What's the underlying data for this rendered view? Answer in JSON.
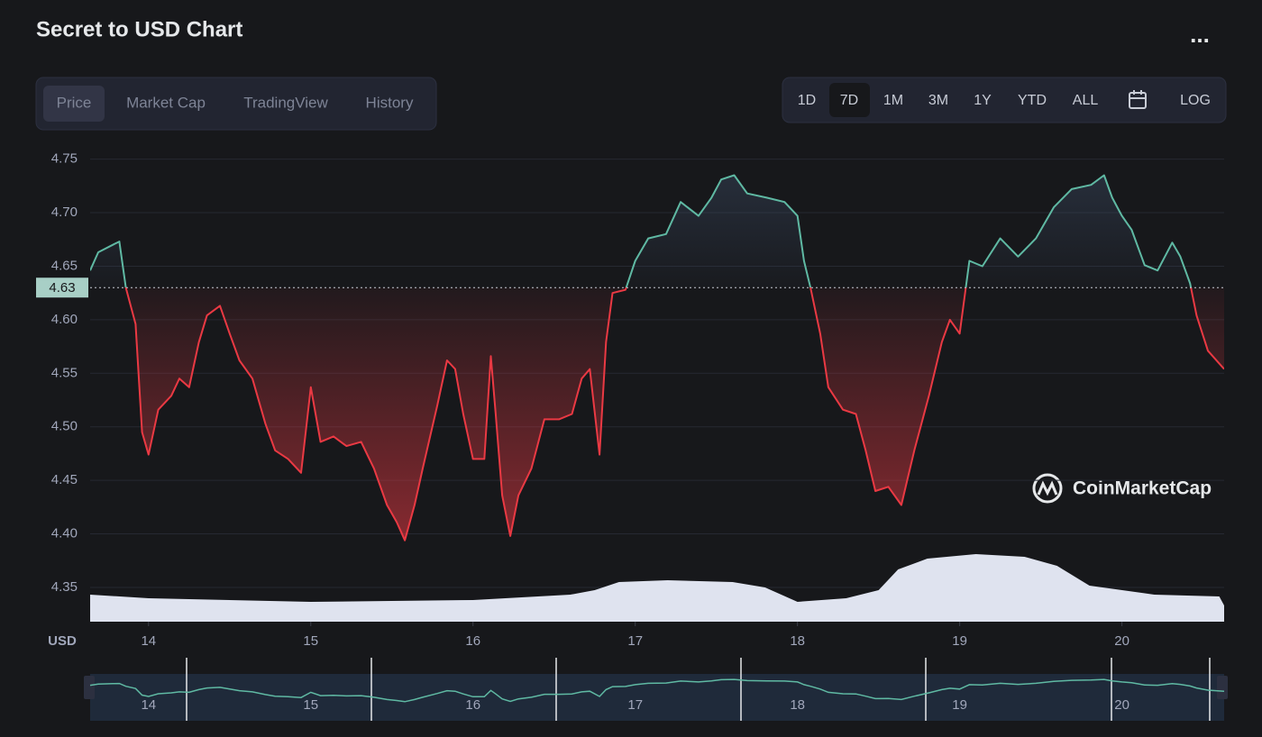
{
  "header": {
    "title": "Secret to USD Chart",
    "menu": "..."
  },
  "tabs": [
    "Price",
    "Market Cap",
    "TradingView",
    "History"
  ],
  "ranges": [
    "1D",
    "7D",
    "1M",
    "3M",
    "1Y",
    "YTD",
    "ALL",
    "LOG"
  ],
  "watermark": "CoinMarketCap",
  "chart_data": {
    "type": "line",
    "currency": "USD",
    "x": [
      13.64,
      13.69,
      13.78,
      13.82,
      13.86,
      13.92,
      13.96,
      14.0,
      14.06,
      14.14,
      14.19,
      14.25,
      14.31,
      14.36,
      14.44,
      14.5,
      14.56,
      14.64,
      14.72,
      14.78,
      14.86,
      14.94,
      15.0,
      15.06,
      15.14,
      15.22,
      15.31,
      15.39,
      15.47,
      15.53,
      15.58,
      15.64,
      15.69,
      15.78,
      15.84,
      15.89,
      15.94,
      16.0,
      16.07,
      16.11,
      16.14,
      16.18,
      16.23,
      16.28,
      16.36,
      16.44,
      16.53,
      16.61,
      16.67,
      16.72,
      16.78,
      16.82,
      16.86,
      16.94,
      17.0,
      17.08,
      17.19,
      17.28,
      17.39,
      17.47,
      17.53,
      17.61,
      17.69,
      17.81,
      17.92,
      18.0,
      18.04,
      18.08,
      18.14,
      18.19,
      18.28,
      18.36,
      18.42,
      18.48,
      18.56,
      18.64,
      18.72,
      18.81,
      18.89,
      18.94,
      19.0,
      19.06,
      19.14,
      19.25,
      19.36,
      19.47,
      19.58,
      19.69,
      19.81,
      19.89,
      19.94,
      20.0,
      20.06,
      20.14,
      20.22,
      20.31,
      20.36,
      20.42,
      20.46,
      20.53,
      20.63
    ],
    "series": [
      {
        "color_up": "#5fb9a3",
        "color_down": "#ea3943",
        "values": [
          4.646,
          4.663,
          4.67,
          4.673,
          4.63,
          4.596,
          4.495,
          4.474,
          4.516,
          4.529,
          4.545,
          4.537,
          4.579,
          4.604,
          4.613,
          4.587,
          4.562,
          4.545,
          4.503,
          4.478,
          4.47,
          4.457,
          4.537,
          4.486,
          4.491,
          4.482,
          4.486,
          4.461,
          4.427,
          4.411,
          4.394,
          4.427,
          4.461,
          4.52,
          4.562,
          4.554,
          4.512,
          4.47,
          4.47,
          4.566,
          4.512,
          4.436,
          4.398,
          4.436,
          4.461,
          4.507,
          4.507,
          4.512,
          4.545,
          4.554,
          4.474,
          4.579,
          4.625,
          4.628,
          4.655,
          4.676,
          4.68,
          4.71,
          4.697,
          4.714,
          4.731,
          4.735,
          4.718,
          4.714,
          4.71,
          4.697,
          4.655,
          4.63,
          4.587,
          4.537,
          4.516,
          4.512,
          4.478,
          4.44,
          4.444,
          4.427,
          4.478,
          4.529,
          4.579,
          4.6,
          4.587,
          4.655,
          4.65,
          4.676,
          4.659,
          4.676,
          4.705,
          4.722,
          4.726,
          4.735,
          4.714,
          4.697,
          4.684,
          4.651,
          4.646,
          4.672,
          4.659,
          4.634,
          4.604,
          4.571,
          4.554
        ]
      }
    ],
    "reference_value": 4.63,
    "xlim": [
      13.64,
      20.63
    ],
    "xticks": [
      14,
      15,
      16,
      17,
      18,
      19,
      20
    ],
    "ylim": [
      4.318,
      4.764
    ],
    "yticks": [
      4.35,
      {
        "value": 4.4,
        "label": "4.40"
      },
      4.45,
      {
        "value": 4.5,
        "label": "4.50"
      },
      4.55,
      {
        "value": 4.6,
        "label": "4.60"
      },
      4.65,
      {
        "value": 4.7,
        "label": "4.70"
      },
      4.75
    ],
    "grid": true,
    "volume": {
      "color": "#dfe3ef",
      "ylim": [
        0,
        100
      ],
      "x": [
        13.64,
        14.0,
        15.0,
        16.0,
        16.6,
        16.75,
        16.9,
        17.2,
        17.6,
        17.8,
        18.0,
        18.3,
        18.5,
        18.62,
        18.8,
        19.1,
        19.4,
        19.6,
        19.8,
        20.2,
        20.6,
        20.63
      ],
      "values": [
        30,
        26,
        22,
        24,
        30,
        35,
        44,
        46,
        44,
        38,
        22,
        26,
        35,
        58,
        70,
        75,
        72,
        62,
        40,
        30,
        28,
        18
      ]
    },
    "navigator_ylim": [
      4.1,
      5.0
    ]
  }
}
